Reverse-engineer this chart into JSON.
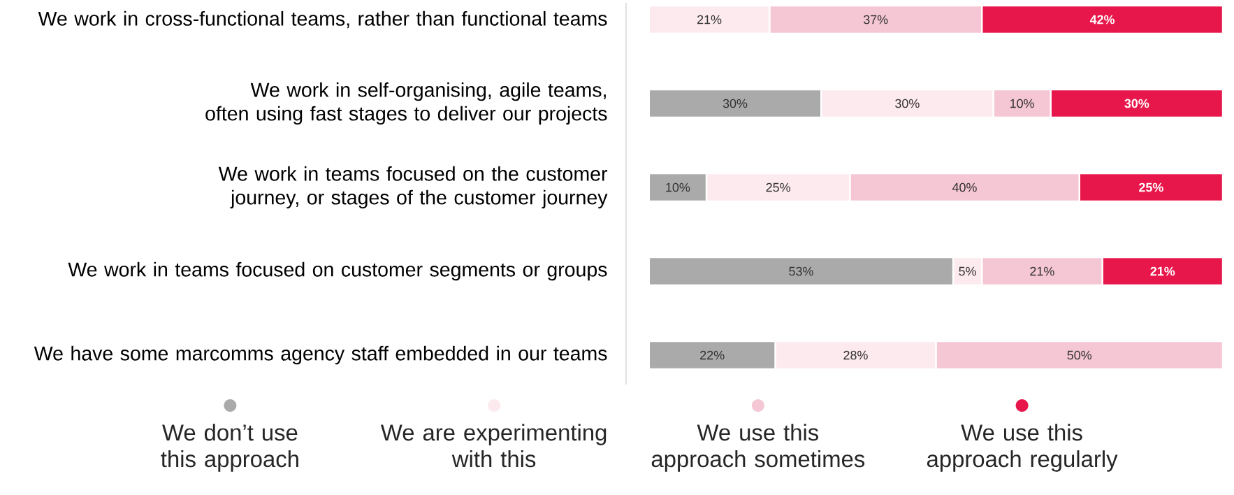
{
  "chart_data": {
    "type": "bar",
    "orientation": "horizontal",
    "stacked": true,
    "legend": "bottom",
    "categories": [
      "We work in cross-functional teams, rather than functional teams",
      "We work in self-organising, agile teams, often using fast stages to deliver our projects",
      "We work in teams focused on the customer journey, or stages of the customer journey",
      "We work in teams focused on customer segments or groups",
      "We have some marcomms agency staff embedded in our teams"
    ],
    "series": [
      {
        "name": "We don’t use this approach",
        "color": "#aaaaaa",
        "values": [
          null,
          30,
          10,
          53,
          22
        ],
        "value_labels": [
          null,
          "30%",
          "10%",
          "53%",
          "22%"
        ]
      },
      {
        "name": "We are experimenting with this",
        "color": "#fdeaef",
        "values": [
          21,
          30,
          25,
          5,
          28
        ],
        "value_labels": [
          "21%",
          "30%",
          "25%",
          "5%",
          "28%"
        ]
      },
      {
        "name": "We use this approach sometimes",
        "color": "#f5c6d4",
        "values": [
          37,
          10,
          40,
          21,
          50
        ],
        "value_labels": [
          "37%",
          "10%",
          "40%",
          "21%",
          "50%"
        ]
      },
      {
        "name": "We use this approach regularly",
        "color": "#e8174b",
        "values": [
          42,
          30,
          25,
          21,
          null
        ],
        "value_labels": [
          "42%",
          "30%",
          "25%",
          "21%",
          null
        ]
      }
    ]
  }
}
